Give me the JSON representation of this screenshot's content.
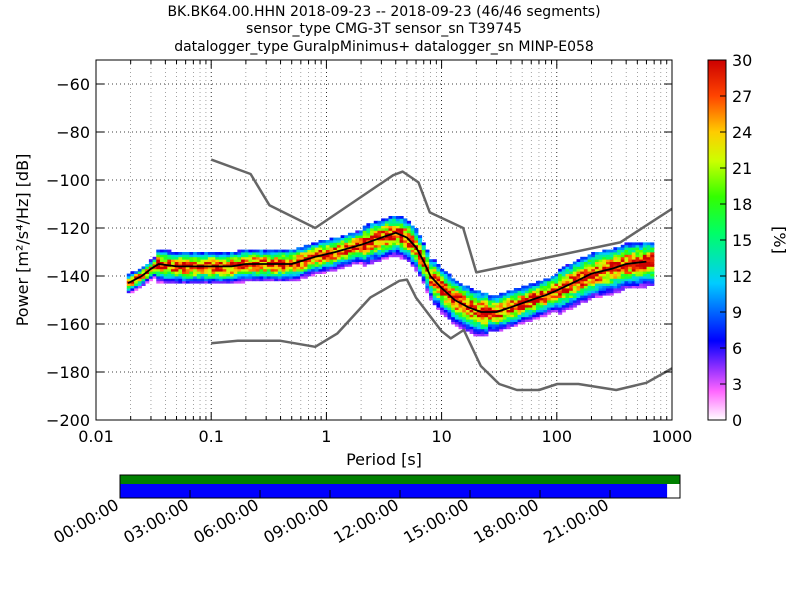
{
  "chart_data": {
    "type": "heatmap",
    "title_lines": [
      "BK.BK64.00.HHN   2018-09-23 -- 2018-09-23  (46/46 segments)",
      "sensor_type CMG-3T sensor_sn T39745",
      "datalogger_type GuralpMinimus+ datalogger_sn MINP-E058"
    ],
    "xlabel": "Period [s]",
    "ylabel": "Power [m²/s⁴/Hz] [dB]",
    "x_scale": "log",
    "xlim": [
      0.01,
      1000
    ],
    "ylim": [
      -200,
      -50
    ],
    "x_ticks": [
      {
        "v": 0.01,
        "label": "0.01"
      },
      {
        "v": 0.1,
        "label": "0.1"
      },
      {
        "v": 1,
        "label": "1"
      },
      {
        "v": 10,
        "label": "10"
      },
      {
        "v": 100,
        "label": "100"
      },
      {
        "v": 1000,
        "label": "1000"
      }
    ],
    "y_ticks": [
      {
        "v": -60,
        "label": "−60"
      },
      {
        "v": -80,
        "label": "−80"
      },
      {
        "v": -100,
        "label": "−100"
      },
      {
        "v": -120,
        "label": "−120"
      },
      {
        "v": -140,
        "label": "−140"
      },
      {
        "v": -160,
        "label": "−160"
      },
      {
        "v": -180,
        "label": "−180"
      },
      {
        "v": -200,
        "label": "−200"
      }
    ],
    "grid": true,
    "colorbar": {
      "label": "[%]",
      "range": [
        0,
        30
      ],
      "ticks": [
        {
          "v": 0,
          "label": "0"
        },
        {
          "v": 3,
          "label": "3"
        },
        {
          "v": 6,
          "label": "6"
        },
        {
          "v": 9,
          "label": "9"
        },
        {
          "v": 12,
          "label": "12"
        },
        {
          "v": 15,
          "label": "15"
        },
        {
          "v": 18,
          "label": "18"
        },
        {
          "v": 21,
          "label": "21"
        },
        {
          "v": 24,
          "label": "24"
        },
        {
          "v": 27,
          "label": "27"
        },
        {
          "v": 30,
          "label": "30"
        }
      ]
    },
    "nhnm": [
      [
        0.1,
        -168
      ],
      [
        0.17,
        -167
      ],
      [
        0.4,
        -167
      ],
      [
        0.8,
        -169.5
      ],
      [
        1.24,
        -164
      ],
      [
        2.4,
        -149
      ],
      [
        4.3,
        -142
      ],
      [
        5,
        -141.5
      ],
      [
        6,
        -149
      ],
      [
        10,
        -163
      ],
      [
        12,
        -166
      ],
      [
        15.6,
        -162.5
      ],
      [
        21.9,
        -177.5
      ],
      [
        31.6,
        -185
      ],
      [
        45,
        -187.5
      ],
      [
        70,
        -187.5
      ],
      [
        101,
        -185
      ],
      [
        154,
        -185
      ],
      [
        328,
        -187.5
      ],
      [
        600,
        -184.5
      ],
      [
        1000,
        -178.5
      ]
    ],
    "nlnm": [
      [
        0.1,
        -91.5
      ],
      [
        0.22,
        -97.5
      ],
      [
        0.32,
        -110.5
      ],
      [
        0.8,
        -120
      ],
      [
        3.8,
        -98
      ],
      [
        4.6,
        -96.5
      ],
      [
        6.3,
        -101
      ],
      [
        7.9,
        -113.5
      ],
      [
        15.4,
        -120
      ],
      [
        20,
        -138.5
      ],
      [
        354.8,
        -126
      ],
      [
        1000,
        -112
      ]
    ],
    "mode_line": [
      [
        0.019,
        -143
      ],
      [
        0.025,
        -140
      ],
      [
        0.03,
        -137
      ],
      [
        0.035,
        -135
      ],
      [
        0.05,
        -136
      ],
      [
        0.1,
        -136
      ],
      [
        0.15,
        -136
      ],
      [
        0.2,
        -135
      ],
      [
        0.3,
        -135
      ],
      [
        0.5,
        -135
      ],
      [
        0.8,
        -132
      ],
      [
        1.2,
        -130
      ],
      [
        2,
        -127
      ],
      [
        3,
        -124
      ],
      [
        4,
        -122
      ],
      [
        5,
        -124
      ],
      [
        6,
        -128
      ],
      [
        7,
        -134
      ],
      [
        8,
        -140
      ],
      [
        10,
        -145
      ],
      [
        13,
        -150
      ],
      [
        17,
        -153
      ],
      [
        22,
        -155
      ],
      [
        30,
        -155
      ],
      [
        40,
        -153
      ],
      [
        60,
        -150
      ],
      [
        80,
        -148
      ],
      [
        100,
        -146
      ],
      [
        150,
        -142
      ],
      [
        200,
        -139
      ],
      [
        300,
        -137
      ],
      [
        400,
        -135
      ],
      [
        600,
        -134
      ]
    ],
    "timeline": {
      "tick_labels": [
        "00:00:00",
        "03:00:00",
        "06:00:00",
        "09:00:00",
        "12:00:00",
        "15:00:00",
        "18:00:00",
        "21:00:00"
      ],
      "data_bar_color": "#008000",
      "segment_bar_color": "#0000ff",
      "segment_coverage": 0.977
    }
  }
}
